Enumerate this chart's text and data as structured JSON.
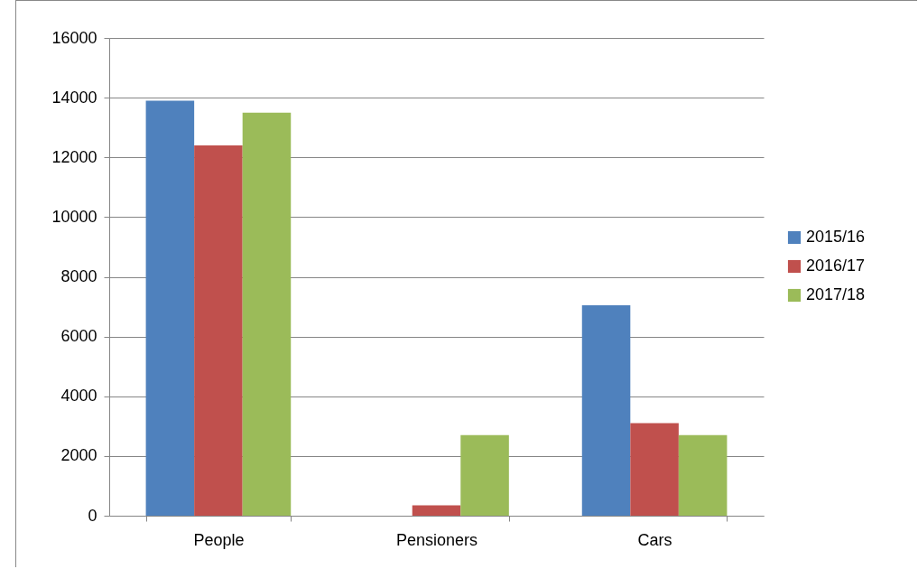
{
  "chart_data": {
    "type": "bar",
    "categories": [
      "People",
      "Pensioners",
      "Cars"
    ],
    "series": [
      {
        "name": "2015/16",
        "color": "#4f81bd",
        "values": [
          13900,
          0,
          7050
        ]
      },
      {
        "name": "2016/17",
        "color": "#c0504d",
        "values": [
          12400,
          350,
          3100
        ]
      },
      {
        "name": "2017/18",
        "color": "#9bbb59",
        "values": [
          13500,
          2700,
          2700
        ]
      }
    ],
    "ylim": [
      0,
      16000
    ],
    "yticks": [
      0,
      2000,
      4000,
      6000,
      8000,
      10000,
      12000,
      14000,
      16000
    ],
    "grid": "y",
    "legend": "right"
  }
}
